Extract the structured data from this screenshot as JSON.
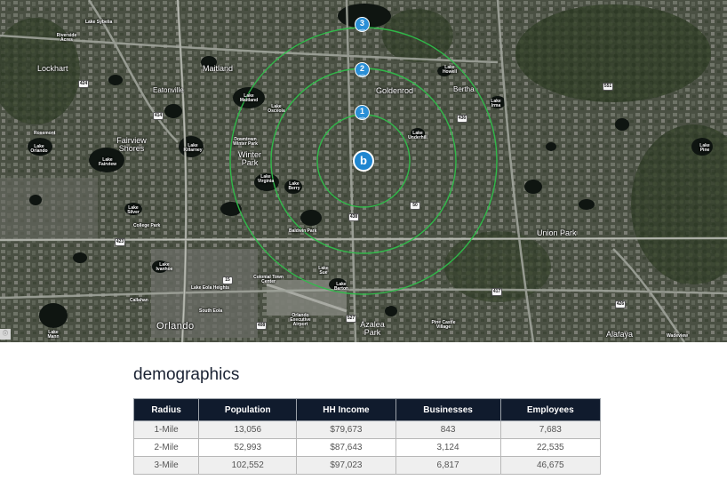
{
  "map": {
    "place_labels": [
      "Lockhart",
      "Maitland",
      "Eatonville",
      "Goldenrod",
      "Bertha",
      "Fairview Shores",
      "Winter Park",
      "Union Park",
      "Orlando",
      "Azalea Park",
      "Alafaya",
      "Downtown Winter Park",
      "Baldwin Park",
      "Rosemont",
      "Riverside Acres",
      "Lake Sybelia",
      "College Park",
      "Lake Eola Heights",
      "South Eola",
      "Callahan",
      "Colonial Town Center",
      "Orlando Executive Airport",
      "Pine Castle Village",
      "Wadeview"
    ],
    "lake_labels": [
      "Lake Orlando",
      "Lake Fairview",
      "Lake Killarney",
      "Lake Maitland",
      "Lake Virginia",
      "Lake Berry",
      "Lake Osceola",
      "Lake Sue",
      "Lake Barton",
      "Lake Silver",
      "Lake Ivanhoe",
      "Lake Mann",
      "Lake Howell",
      "Lake Irma",
      "Lake Pine",
      "Lake Underhill"
    ],
    "road_shields": [
      "424",
      "414",
      "423",
      "436",
      "50",
      "408",
      "417",
      "551",
      "426",
      "438",
      "527",
      "15"
    ],
    "radius_pins": [
      {
        "number": "1",
        "unit": "mile"
      },
      {
        "number": "2",
        "unit": "mile"
      },
      {
        "number": "3",
        "unit": "mile"
      }
    ],
    "center_marker": "b",
    "ring_color": "#2fbf4a",
    "pin_color": "#2a8fd6"
  },
  "demographics": {
    "title": "demographics",
    "headers": [
      "Radius",
      "Population",
      "HH Income",
      "Businesses",
      "Employees"
    ],
    "rows": [
      [
        "1-Mile",
        "13,056",
        "$79,673",
        "843",
        "7,683"
      ],
      [
        "2-Mile",
        "52,993",
        "$87,643",
        "3,124",
        "22,535"
      ],
      [
        "3-Mile",
        "102,552",
        "$97,023",
        "6,817",
        "46,675"
      ]
    ],
    "header_color": "#101b2d"
  }
}
